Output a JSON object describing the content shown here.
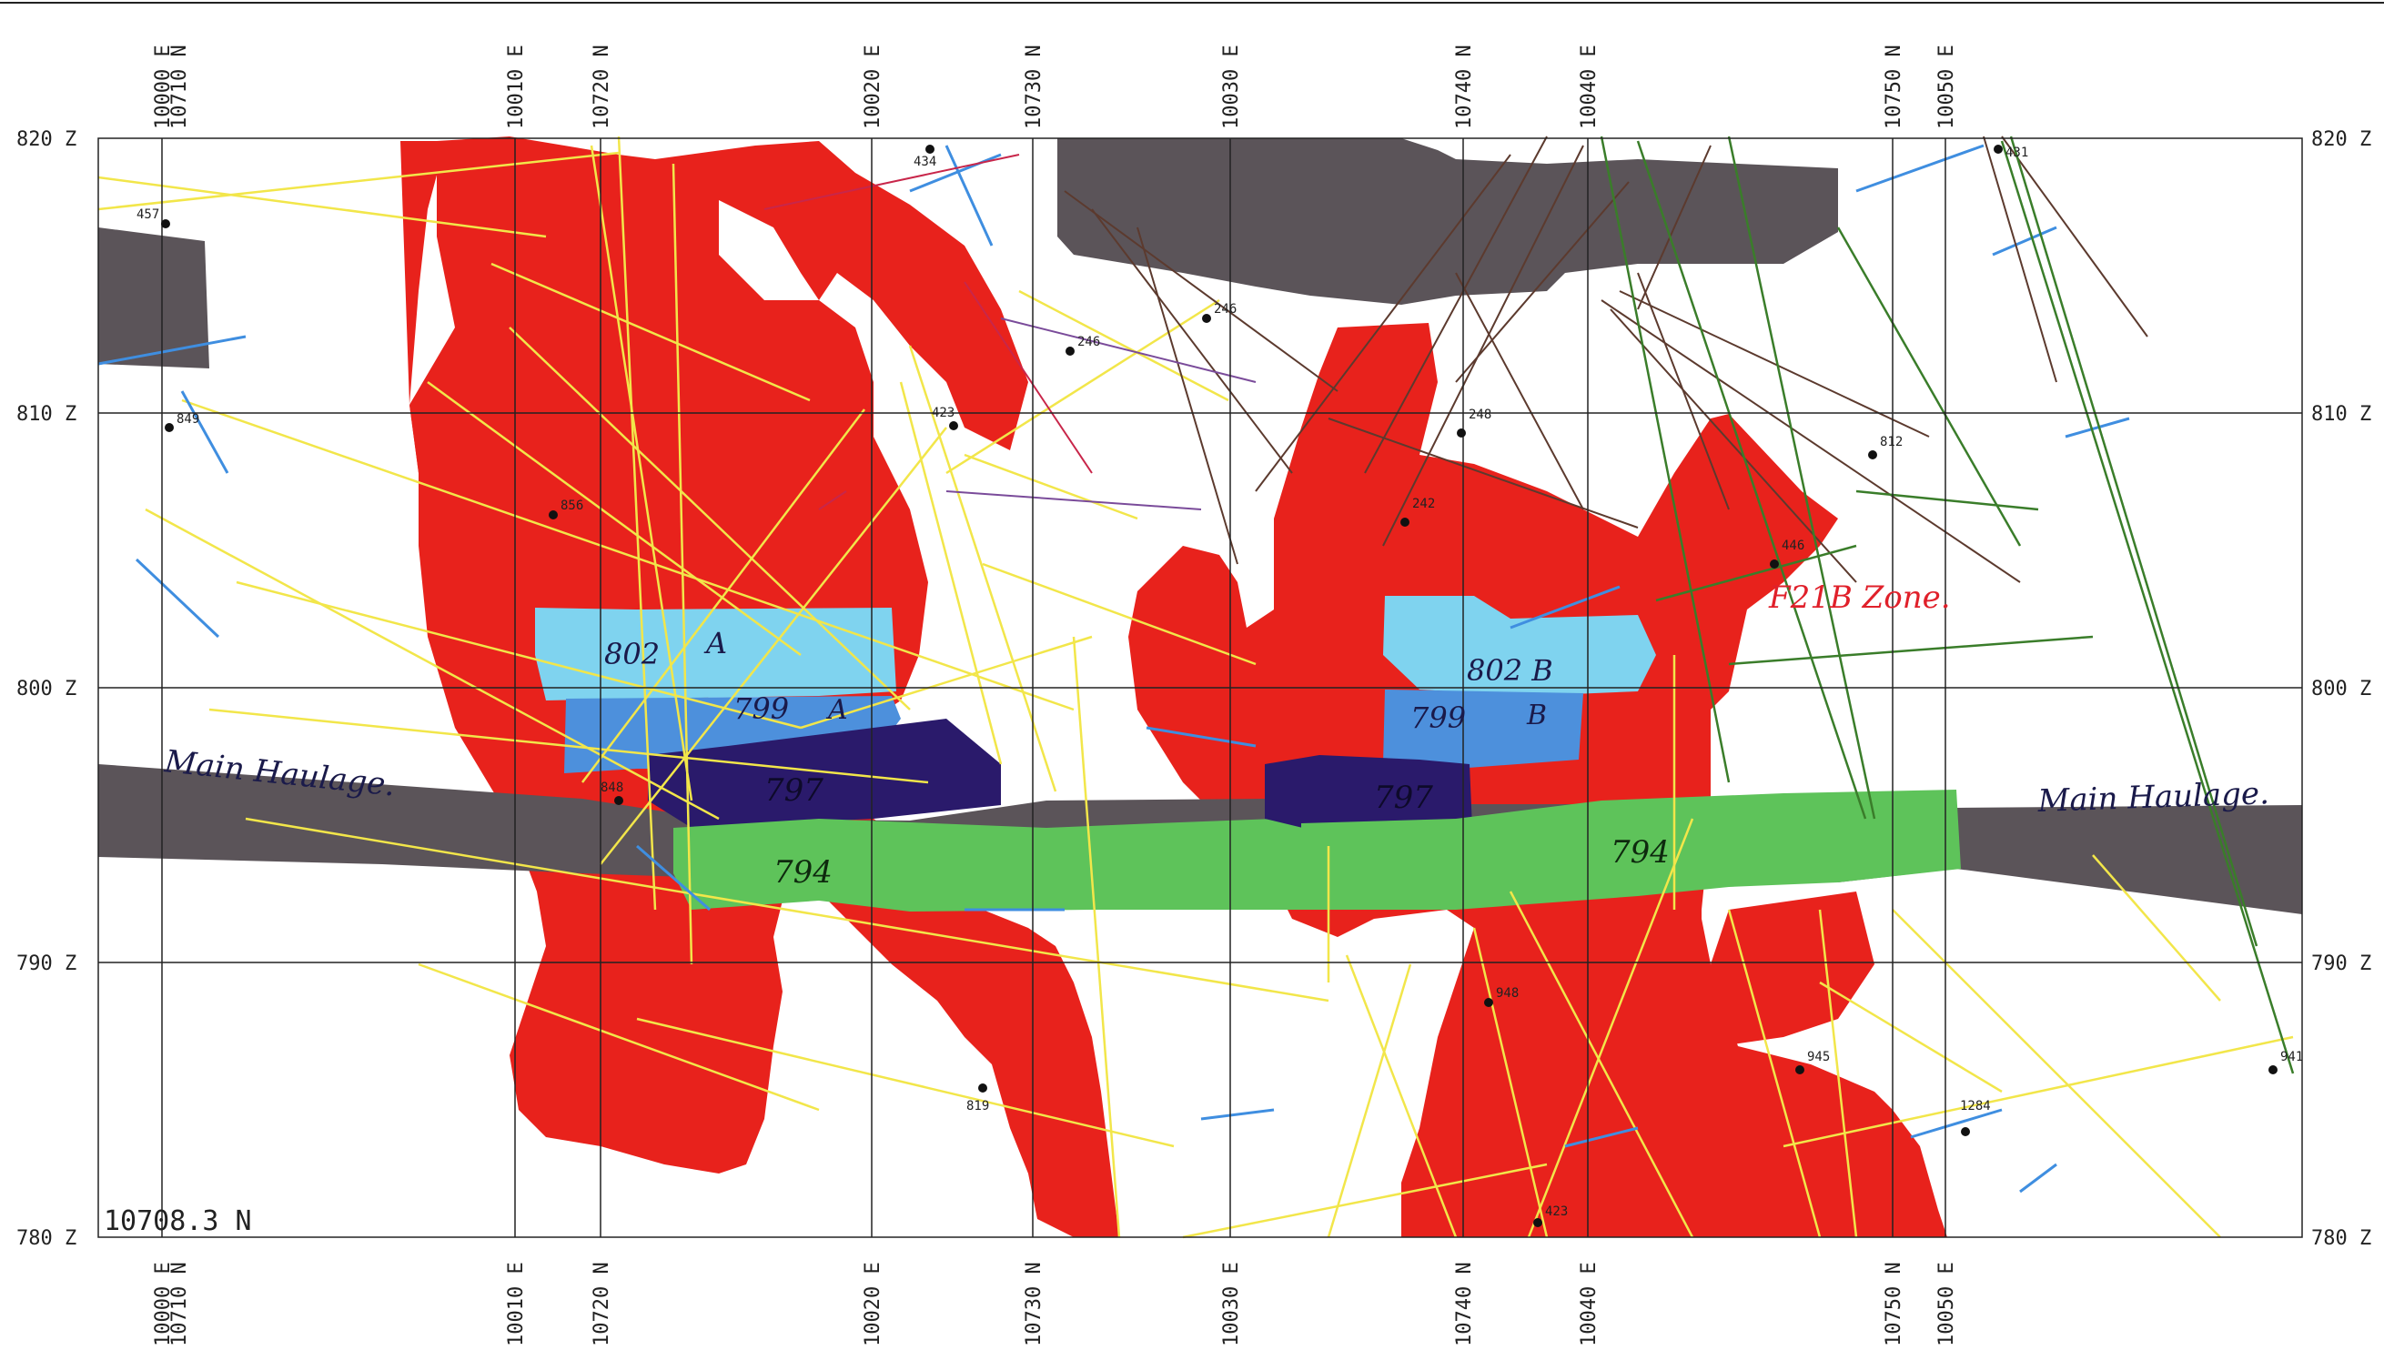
{
  "section_label": "10708.3 N",
  "grid": {
    "elevation_labels": [
      "820 Z",
      "810 Z",
      "800 Z",
      "790 Z",
      "780 Z"
    ],
    "easting_labels": [
      "10000 E",
      "10010 E",
      "10020 E",
      "10030 E",
      "10040 E",
      "10050 E"
    ],
    "northing_labels": [
      "10710 N",
      "10720 N",
      "10730 N",
      "10740 N",
      "10750 N"
    ]
  },
  "annotations": {
    "main_haulage_left": "Main Haulage.",
    "main_haulage_right": "Main Haulage.",
    "zone_label": "F21B Zone.",
    "level_802A": "802",
    "level_802A_suffix": "A",
    "level_799A": "799",
    "level_799A_suffix": "A",
    "level_797_left": "797",
    "level_794_left": "794",
    "level_802B": "802 B",
    "level_799B": "799",
    "level_799B_suffix": "B",
    "level_797_right": "797",
    "level_794_right": "794"
  },
  "hole_ids": [
    "849",
    "856",
    "848",
    "246",
    "423",
    "434",
    "248",
    "242",
    "246",
    "446",
    "812",
    "948",
    "945",
    "1284",
    "941",
    "819",
    "457",
    "423",
    "431"
  ],
  "legend_colors": {
    "orebody": "#e8221c",
    "haulage": "#5b5459",
    "level_802": "#7fd3ef",
    "level_799": "#4d90dc",
    "level_797": "#2a1a6b",
    "level_794": "#5ec35a",
    "drillhole_primary": "#f2e64a",
    "drillhole_secondary": "#3f8ee0",
    "drillhole_tertiary": "#5c3a2e",
    "drillhole_quaternary": "#3a7d2a"
  }
}
